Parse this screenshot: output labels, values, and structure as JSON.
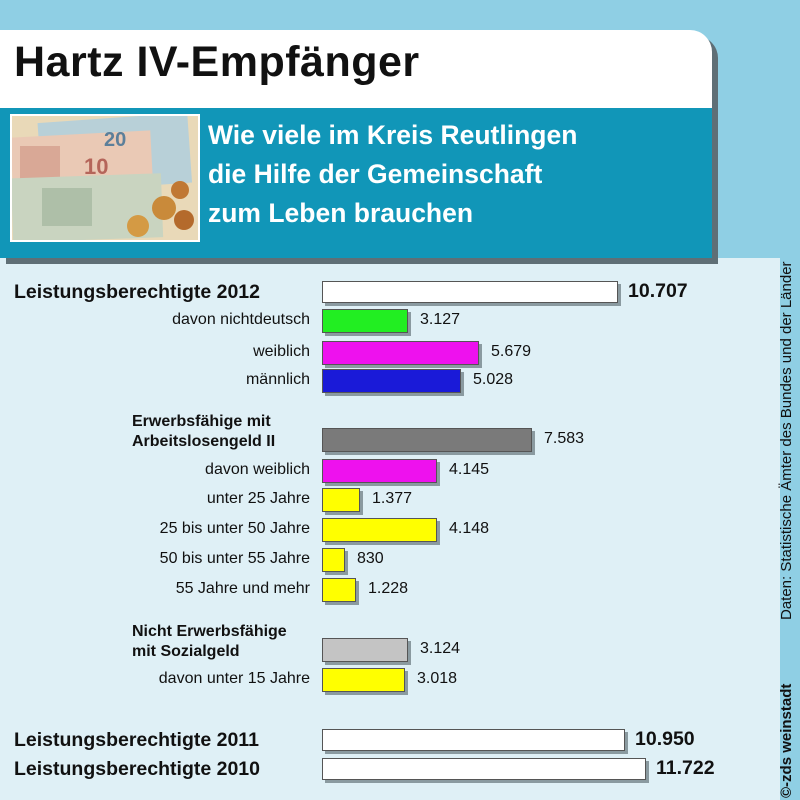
{
  "header": {
    "title": "Hartz IV-Empfänger",
    "subtitle_lines": [
      "Wie viele im Kreis Reutlingen",
      "die Hilfe der Gemeinschaft",
      "zum Leben brauchen"
    ]
  },
  "source": "Daten: Statistische Ämter des Bundes und der Länder",
  "credit": "©-zds weinstadt",
  "colors": {
    "green": "#22ee22",
    "magenta": "#ee11ee",
    "blue": "#1a1ad8",
    "dark_gray": "#7a7a7a",
    "light_gray": "#c4c4c4",
    "yellow": "#ffff00",
    "white": "#ffffff",
    "teal": "#1196b8",
    "sky": "#8fcfe4"
  },
  "chart_data": {
    "type": "bar",
    "orientation": "horizontal",
    "rows": [
      {
        "label": "Leistungsberechtigte 2012",
        "value": 10707,
        "display": "10.707",
        "color": "white",
        "style": "total"
      },
      {
        "label": "davon nichtdeutsch",
        "value": 3127,
        "display": "3.127",
        "color": "green",
        "style": "sub"
      },
      {
        "label": "weiblich",
        "value": 5679,
        "display": "5.679",
        "color": "magenta",
        "style": "sub"
      },
      {
        "label": "männlich",
        "value": 5028,
        "display": "5.028",
        "color": "blue",
        "style": "sub"
      },
      {
        "label": "Erwerbsfähige mit\nArbeitslosengeld II",
        "value": 7583,
        "display": "7.583",
        "color": "dark_gray",
        "style": "group"
      },
      {
        "label": "davon weiblich",
        "value": 4145,
        "display": "4.145",
        "color": "magenta",
        "style": "sub"
      },
      {
        "label": "unter 25 Jahre",
        "value": 1377,
        "display": "1.377",
        "color": "yellow",
        "style": "sub"
      },
      {
        "label": "25 bis unter 50 Jahre",
        "value": 4148,
        "display": "4.148",
        "color": "yellow",
        "style": "sub"
      },
      {
        "label": "50 bis unter 55 Jahre",
        "value": 830,
        "display": "830",
        "color": "yellow",
        "style": "sub"
      },
      {
        "label": "55 Jahre und mehr",
        "value": 1228,
        "display": "1.228",
        "color": "yellow",
        "style": "sub"
      },
      {
        "label": "Nicht Erwerbsfähige\nmit Sozialgeld",
        "value": 3124,
        "display": "3.124",
        "color": "light_gray",
        "style": "group"
      },
      {
        "label": "davon unter 15 Jahre",
        "value": 3018,
        "display": "3.018",
        "color": "yellow",
        "style": "sub"
      },
      {
        "label": "Leistungsberechtigte 2011",
        "value": 10950,
        "display": "10.950",
        "color": "white",
        "style": "total"
      },
      {
        "label": "Leistungsberechtigte 2010",
        "value": 11722,
        "display": "11.722",
        "color": "white",
        "style": "total"
      }
    ]
  }
}
